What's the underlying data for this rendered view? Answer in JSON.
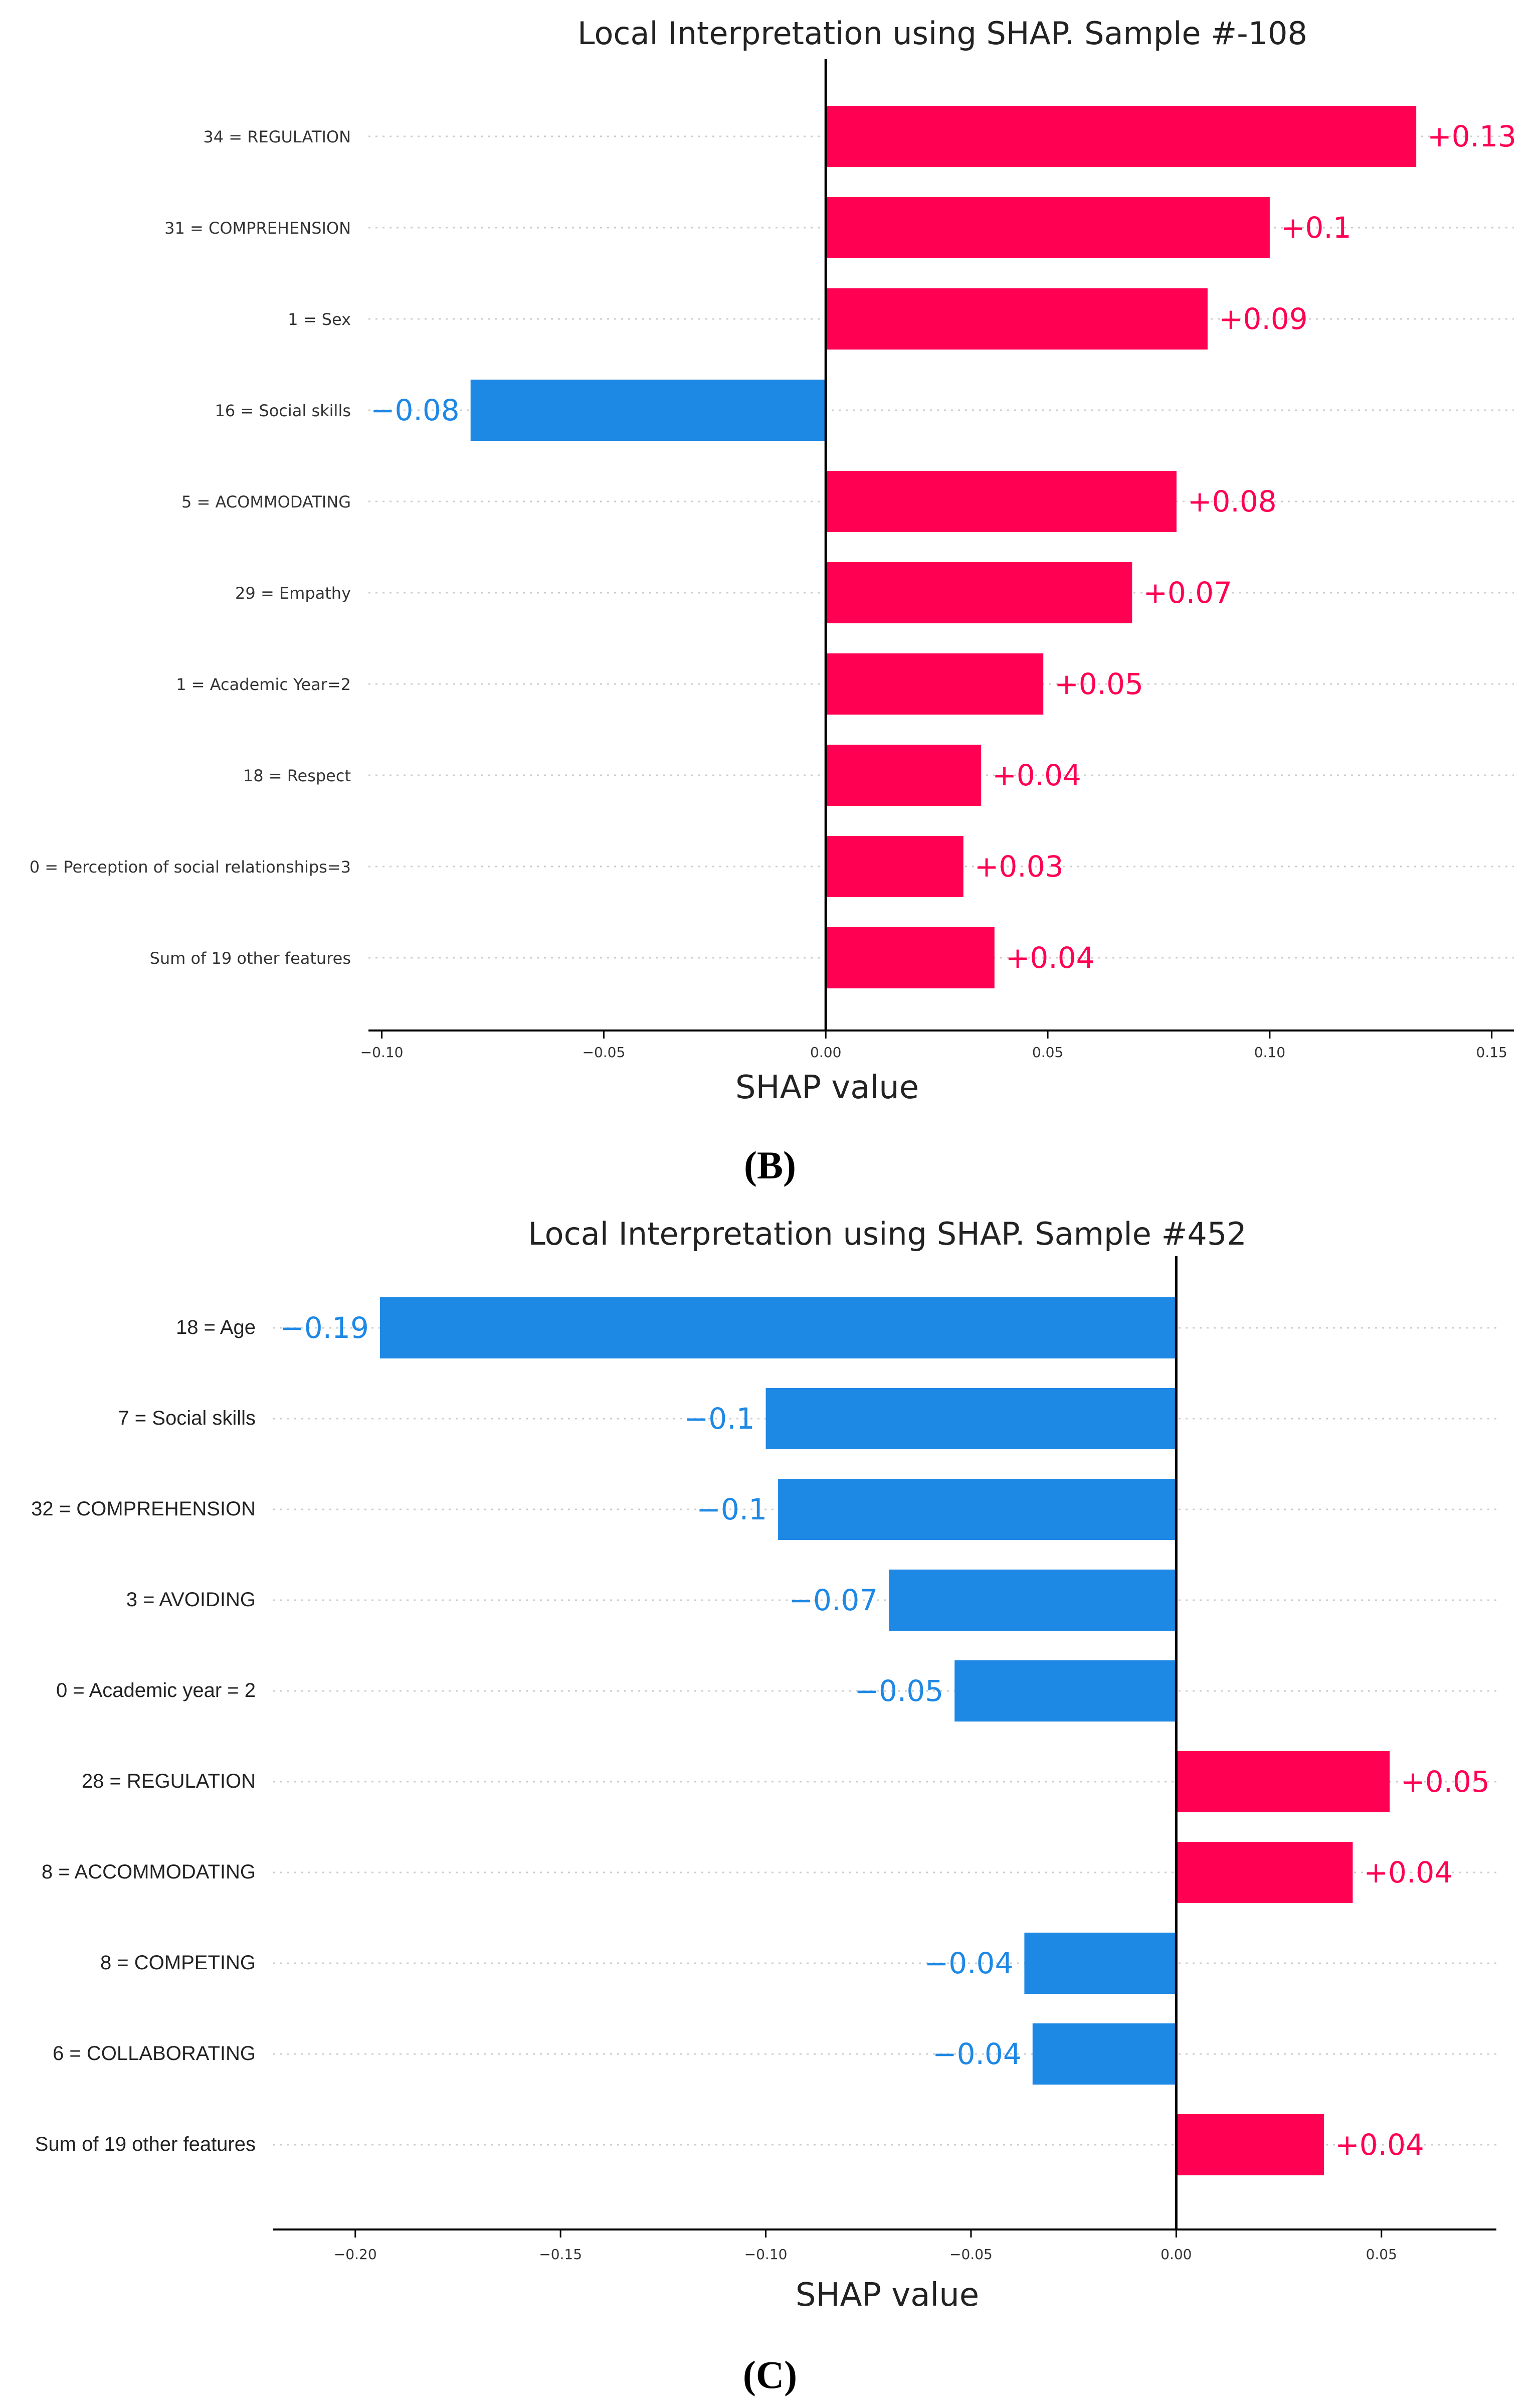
{
  "colors": {
    "positive": "#ff0052",
    "negative": "#1e88e5",
    "axis": "#000000",
    "grid": "#cccccc"
  },
  "chart_data": [
    {
      "type": "bar",
      "orientation": "horizontal",
      "title": "Local Interpretation using SHAP. Sample #-108",
      "xlabel": "SHAP value",
      "caption_letter": "B",
      "xlim": [
        -0.103,
        0.155
      ],
      "xticks": [
        -0.1,
        -0.05,
        0.0,
        0.05,
        0.1,
        0.15
      ],
      "xtick_labels": [
        "−0.10",
        "−0.05",
        "0.00",
        "0.05",
        "0.10",
        "0.15"
      ],
      "features": [
        {
          "label": "34 = REGULATION",
          "value": 0.133,
          "text": "+0.13"
        },
        {
          "label": "31 = COMPREHENSION",
          "value": 0.1,
          "text": "+0.1"
        },
        {
          "label": "1 = Sex",
          "value": 0.086,
          "text": "+0.09"
        },
        {
          "label": "16 = Social skills",
          "value": -0.08,
          "text": "−0.08"
        },
        {
          "label": "5 = ACOMMODATING",
          "value": 0.079,
          "text": "+0.08"
        },
        {
          "label": "29 = Empathy",
          "value": 0.069,
          "text": "+0.07"
        },
        {
          "label": "1 = Academic Year=2",
          "value": 0.049,
          "text": "+0.05"
        },
        {
          "label": "18 = Respect",
          "value": 0.035,
          "text": "+0.04"
        },
        {
          "label": "0 = Perception of social relationships=3",
          "value": 0.031,
          "text": "+0.03"
        },
        {
          "label": "Sum of 19 other features",
          "value": 0.038,
          "text": "+0.04"
        }
      ]
    },
    {
      "type": "bar",
      "orientation": "horizontal",
      "title": "Local Interpretation using SHAP. Sample #452",
      "xlabel": "SHAP value",
      "caption_letter": "C",
      "xlim": [
        -0.22,
        0.078
      ],
      "xticks": [
        -0.2,
        -0.15,
        -0.1,
        -0.05,
        0.0,
        0.05
      ],
      "xtick_labels": [
        "−0.20",
        "−0.15",
        "−0.10",
        "−0.05",
        "0.00",
        "0.05"
      ],
      "features": [
        {
          "label": "18 = Age",
          "value": -0.194,
          "text": "−0.19"
        },
        {
          "label": "7 = Social skills",
          "value": -0.1,
          "text": "−0.1"
        },
        {
          "label": "32 = COMPREHENSION",
          "value": -0.097,
          "text": "−0.1"
        },
        {
          "label": "3 = AVOIDING",
          "value": -0.07,
          "text": "−0.07"
        },
        {
          "label": "0 = Academic year = 2",
          "value": -0.054,
          "text": "−0.05"
        },
        {
          "label": "28 = REGULATION",
          "value": 0.052,
          "text": "+0.05"
        },
        {
          "label": "8 = ACCOMMODATING",
          "value": 0.043,
          "text": "+0.04"
        },
        {
          "label": "8 = COMPETING",
          "value": -0.037,
          "text": "−0.04"
        },
        {
          "label": "6 = COLLABORATING",
          "value": -0.035,
          "text": "−0.04"
        },
        {
          "label": "Sum of 19 other features",
          "value": 0.036,
          "text": "+0.04"
        }
      ]
    }
  ]
}
